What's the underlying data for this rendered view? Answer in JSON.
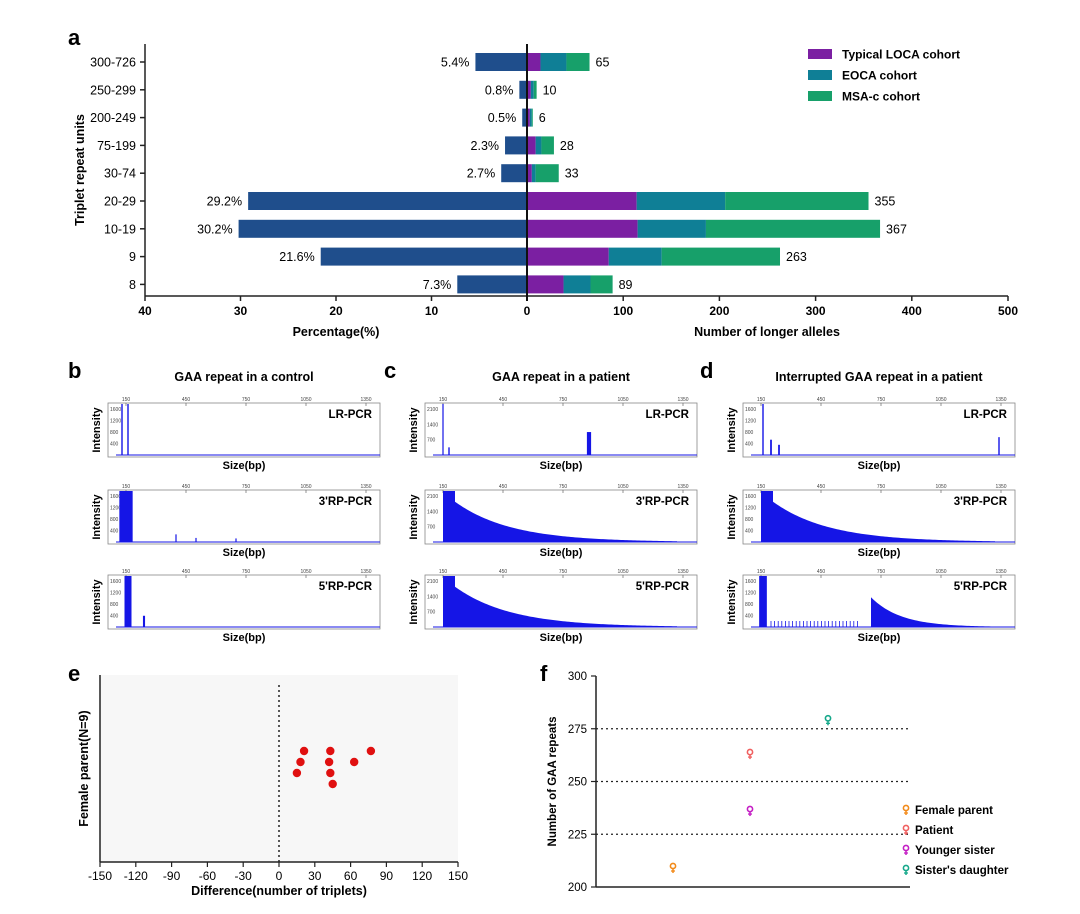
{
  "panels": {
    "a": "a",
    "b": "b",
    "c": "c",
    "d": "d",
    "e": "e",
    "f": "f"
  },
  "colors": {
    "left_bar": "#1f4e8c",
    "typical_loca": "#7b1fa2",
    "eoca": "#0f7f96",
    "msa_c": "#17a06a",
    "trace": "#1515e6",
    "red": "#e01010",
    "female_parent": "#f28a1a",
    "patient": "#f06060",
    "younger_sister": "#c41ec4",
    "sisters_daughter": "#16a88a"
  },
  "chart_data": [
    {
      "id": "a",
      "type": "bar",
      "orientation": "horizontal-butterfly",
      "ylabel": "Triplet repeat units",
      "xlabel_left": "Percentage(%)",
      "xlabel_right": "Number of longer alleles",
      "categories": [
        "300-726",
        "250-299",
        "200-249",
        "75-199",
        "30-74",
        "20-29",
        "10-19",
        "9",
        "8"
      ],
      "left": {
        "name": "Percentage",
        "values": [
          5.4,
          0.8,
          0.5,
          2.3,
          2.7,
          29.2,
          30.2,
          21.6,
          7.3
        ],
        "labels": [
          "5.4%",
          "0.8%",
          "0.5%",
          "2.3%",
          "2.7%",
          "29.2%",
          "30.2%",
          "21.6%",
          "7.3%"
        ],
        "xlim": [
          40,
          0
        ],
        "ticks": [
          "40",
          "30",
          "20",
          "10",
          "0"
        ]
      },
      "right": {
        "series": [
          {
            "name": "Typical LOCA cohort",
            "values": [
              14,
              4,
              3,
              9,
              5,
              114,
              115,
              85,
              38
            ]
          },
          {
            "name": "EOCA cohort",
            "values": [
              27,
              3,
              2,
              6,
              4,
              92,
              71,
              55,
              28
            ]
          },
          {
            "name": "MSA-c cohort",
            "values": [
              24,
              3,
              1,
              13,
              24,
              149,
              181,
              123,
              23
            ]
          }
        ],
        "totals": [
          "65",
          "10",
          "6",
          "28",
          "33",
          "355",
          "367",
          "263",
          "89"
        ],
        "xlim": [
          0,
          500
        ],
        "ticks": [
          "100",
          "200",
          "300",
          "400",
          "500"
        ]
      },
      "legend_position": "top-right"
    },
    {
      "id": "b",
      "type": "line",
      "title": "GAA repeat in a control",
      "size_ticks": [
        "150",
        "450",
        "750",
        "1050",
        "1350"
      ],
      "rows": [
        {
          "label": "LR-PCR",
          "yticks": [
            "1600",
            "1200",
            "800",
            "400"
          ],
          "ylabel": "Intensity",
          "xlabel": "Size(bp)",
          "peaks": [
            {
              "x": 130,
              "h": 1.0,
              "w": 4
            },
            {
              "x": 160,
              "h": 1.0,
              "w": 4
            }
          ]
        },
        {
          "label": "3'RP-PCR",
          "yticks": [
            "1600",
            "1200",
            "800",
            "400"
          ],
          "ylabel": "Intensity",
          "xlabel": "Size(bp)",
          "peaks": [
            {
              "x": 150,
              "h": 1.0,
              "w": 38
            },
            {
              "x": 400,
              "h": 0.15,
              "w": 3
            },
            {
              "x": 500,
              "h": 0.08,
              "w": 3
            },
            {
              "x": 700,
              "h": 0.07,
              "w": 3
            }
          ]
        },
        {
          "label": "5'RP-PCR",
          "yticks": [
            "1600",
            "1200",
            "800",
            "400"
          ],
          "ylabel": "Intensity",
          "xlabel": "Size(bp)",
          "peaks": [
            {
              "x": 160,
              "h": 1.0,
              "w": 20
            },
            {
              "x": 240,
              "h": 0.22,
              "w": 6
            }
          ]
        }
      ]
    },
    {
      "id": "c",
      "type": "line",
      "title": "GAA repeat in a patient",
      "size_ticks": [
        "150",
        "450",
        "750",
        "1050",
        "1350"
      ],
      "rows": [
        {
          "label": "LR-PCR",
          "yticks": [
            "2100",
            "1400",
            "700"
          ],
          "ylabel": "Intensity",
          "xlabel": "Size(bp)",
          "peaks": [
            {
              "x": 150,
              "h": 1.0,
              "w": 3
            },
            {
              "x": 180,
              "h": 0.15,
              "w": 4
            },
            {
              "x": 880,
              "h": 0.45,
              "w": 12
            }
          ]
        },
        {
          "label": "3'RP-PCR",
          "yticks": [
            "2100",
            "1400",
            "700"
          ],
          "ylabel": "Intensity",
          "xlabel": "Size(bp)",
          "decay": true,
          "peaks": []
        },
        {
          "label": "5'RP-PCR",
          "yticks": [
            "2100",
            "1400",
            "700"
          ],
          "ylabel": "Intensity",
          "xlabel": "Size(bp)",
          "decay": true,
          "peaks": []
        }
      ]
    },
    {
      "id": "d",
      "type": "line",
      "title": "Interrupted GAA repeat in a patient",
      "size_ticks": [
        "150",
        "450",
        "750",
        "1050",
        "1350"
      ],
      "rows": [
        {
          "label": "LR-PCR",
          "yticks": [
            "1600",
            "1200",
            "800",
            "400"
          ],
          "ylabel": "Intensity",
          "xlabel": "Size(bp)",
          "peaks": [
            {
              "x": 160,
              "h": 1.0,
              "w": 4
            },
            {
              "x": 200,
              "h": 0.3,
              "w": 5
            },
            {
              "x": 240,
              "h": 0.2,
              "w": 5
            },
            {
              "x": 1340,
              "h": 0.35,
              "w": 4
            }
          ]
        },
        {
          "label": "3'RP-PCR",
          "yticks": [
            "1600",
            "1200",
            "800",
            "400"
          ],
          "ylabel": "Intensity",
          "xlabel": "Size(bp)",
          "decay": true,
          "peaks": []
        },
        {
          "label": "5'RP-PCR",
          "yticks": [
            "1600",
            "1200",
            "800",
            "400"
          ],
          "ylabel": "Intensity",
          "xlabel": "Size(bp)",
          "peaks": [
            {
              "x": 160,
              "h": 1.0,
              "w": 22
            }
          ],
          "secondary_decay_start": 700
        }
      ]
    },
    {
      "id": "e",
      "type": "scatter",
      "xlabel": "Difference(number of triplets)",
      "ylabel": "Female parent(N=9)",
      "xlim": [
        -150,
        150
      ],
      "xticks": [
        "-150",
        "-120",
        "-90",
        "-60",
        "-30",
        "0",
        "30",
        "60",
        "90",
        "120",
        "150"
      ],
      "points": [
        {
          "x": 21,
          "row": 0
        },
        {
          "x": 18,
          "row": 1
        },
        {
          "x": 15,
          "row": 2
        },
        {
          "x": 43,
          "row": 0
        },
        {
          "x": 42,
          "row": 1
        },
        {
          "x": 43,
          "row": 2
        },
        {
          "x": 45,
          "row": 3
        },
        {
          "x": 63,
          "row": 1
        },
        {
          "x": 77,
          "row": 0
        }
      ]
    },
    {
      "id": "f",
      "type": "scatter",
      "ylabel": "Number of GAA repeats",
      "ylim": [
        200,
        300
      ],
      "yticks": [
        "300",
        "275",
        "250",
        "225",
        "200"
      ],
      "reference_lines": [
        225,
        250,
        275
      ],
      "points": [
        {
          "name": "Female parent",
          "y": 209
        },
        {
          "name": "Younger sister",
          "y": 236
        },
        {
          "name": "Patient",
          "y": 263
        },
        {
          "name": "Sister's daughter",
          "y": 279
        }
      ],
      "legend": [
        "Female parent",
        "Patient",
        "Younger sister",
        "Sister's daughter"
      ],
      "legend_position": "bottom-right"
    }
  ]
}
